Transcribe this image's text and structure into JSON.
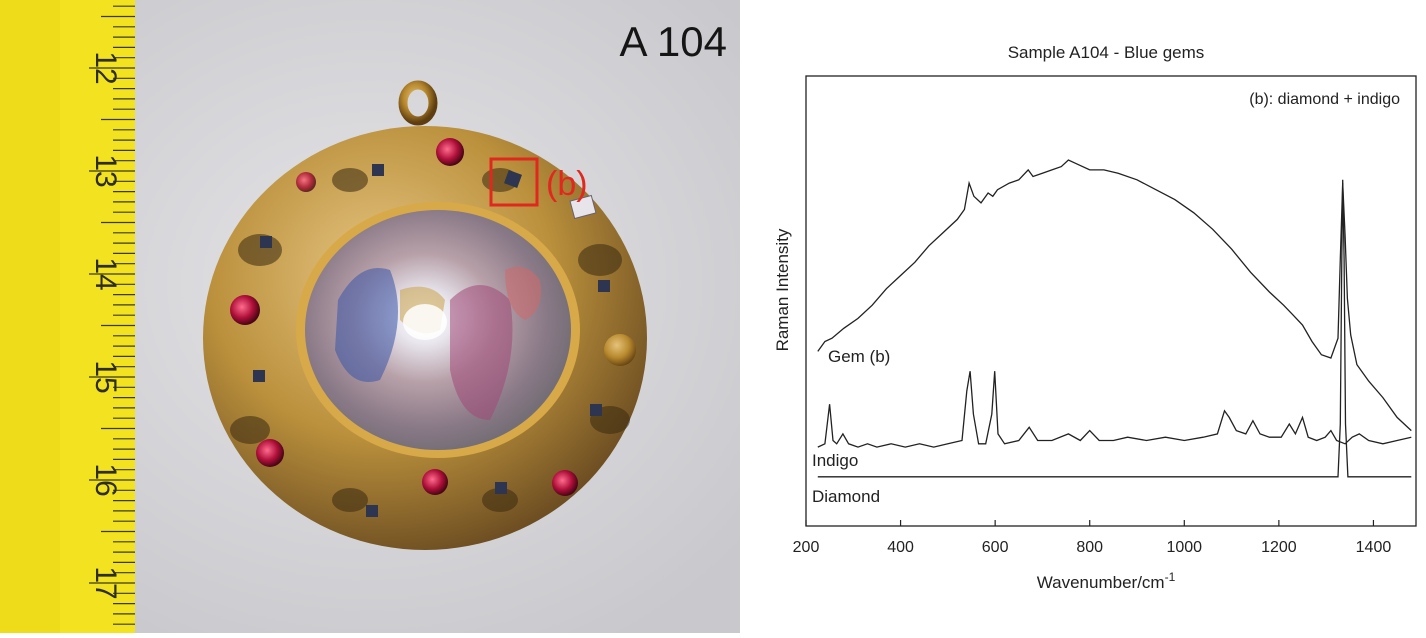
{
  "photo": {
    "sample_label": "A 104",
    "marker_label": "(b)",
    "ruler_numbers": [
      "12",
      "13",
      "14",
      "15",
      "16",
      "17"
    ],
    "colors": {
      "background": "#d9d9dc",
      "ruler": "#f3e21f",
      "marker": "#e0281f",
      "gold": "#b88a2e"
    }
  },
  "chart_data": {
    "type": "line",
    "title": "Sample A104 - Blue gems",
    "annotation": "(b): diamond + indigo",
    "xlabel": "Wavenumber/cm",
    "xlabel_superscript": "-1",
    "ylabel": "Raman Intensity",
    "xlim": [
      200,
      1490
    ],
    "ylim": [
      0,
      100
    ],
    "xticks": [
      200,
      400,
      600,
      800,
      1000,
      1200,
      1400
    ],
    "y_tick_labels_shown": false,
    "legend": "inline-labels",
    "series": [
      {
        "name": "Gem (b)",
        "color": "#222222",
        "points": [
          [
            225,
            42
          ],
          [
            240,
            45
          ],
          [
            255,
            46
          ],
          [
            280,
            49
          ],
          [
            310,
            52
          ],
          [
            340,
            56
          ],
          [
            370,
            61
          ],
          [
            400,
            65
          ],
          [
            430,
            69
          ],
          [
            460,
            74
          ],
          [
            490,
            78
          ],
          [
            520,
            82
          ],
          [
            535,
            85
          ],
          [
            545,
            93
          ],
          [
            555,
            89
          ],
          [
            570,
            87
          ],
          [
            585,
            90
          ],
          [
            595,
            89
          ],
          [
            605,
            91
          ],
          [
            630,
            93
          ],
          [
            650,
            94
          ],
          [
            670,
            97
          ],
          [
            680,
            95
          ],
          [
            700,
            96
          ],
          [
            720,
            97
          ],
          [
            740,
            98
          ],
          [
            755,
            100
          ],
          [
            770,
            99
          ],
          [
            800,
            97
          ],
          [
            830,
            97
          ],
          [
            860,
            96
          ],
          [
            900,
            94
          ],
          [
            940,
            91
          ],
          [
            980,
            88
          ],
          [
            1020,
            84
          ],
          [
            1060,
            79
          ],
          [
            1100,
            73
          ],
          [
            1140,
            66
          ],
          [
            1180,
            60
          ],
          [
            1210,
            56
          ],
          [
            1230,
            53
          ],
          [
            1250,
            50
          ],
          [
            1270,
            45
          ],
          [
            1290,
            41
          ],
          [
            1310,
            40
          ],
          [
            1325,
            46
          ],
          [
            1330,
            70
          ],
          [
            1335,
            93
          ],
          [
            1340,
            77
          ],
          [
            1345,
            58
          ],
          [
            1352,
            47
          ],
          [
            1365,
            38
          ],
          [
            1390,
            33
          ],
          [
            1420,
            28
          ],
          [
            1450,
            22
          ],
          [
            1480,
            18
          ]
        ]
      },
      {
        "name": "Indigo",
        "color": "#222222",
        "points": [
          [
            225,
            13
          ],
          [
            240,
            14
          ],
          [
            250,
            26
          ],
          [
            257,
            15
          ],
          [
            265,
            14
          ],
          [
            278,
            17
          ],
          [
            290,
            14
          ],
          [
            310,
            13
          ],
          [
            330,
            14
          ],
          [
            350,
            13
          ],
          [
            380,
            14
          ],
          [
            410,
            13
          ],
          [
            440,
            14
          ],
          [
            470,
            13
          ],
          [
            500,
            14
          ],
          [
            530,
            15
          ],
          [
            540,
            30
          ],
          [
            547,
            36
          ],
          [
            554,
            23
          ],
          [
            565,
            14
          ],
          [
            580,
            14
          ],
          [
            593,
            23
          ],
          [
            599,
            36
          ],
          [
            606,
            17
          ],
          [
            620,
            14
          ],
          [
            650,
            15
          ],
          [
            672,
            19
          ],
          [
            690,
            15
          ],
          [
            720,
            15
          ],
          [
            755,
            17
          ],
          [
            780,
            15
          ],
          [
            800,
            18
          ],
          [
            820,
            15
          ],
          [
            850,
            15
          ],
          [
            880,
            16
          ],
          [
            920,
            15
          ],
          [
            960,
            16
          ],
          [
            1000,
            15
          ],
          [
            1040,
            16
          ],
          [
            1070,
            17
          ],
          [
            1085,
            24
          ],
          [
            1095,
            22
          ],
          [
            1110,
            18
          ],
          [
            1130,
            17
          ],
          [
            1145,
            21
          ],
          [
            1160,
            17
          ],
          [
            1180,
            16
          ],
          [
            1205,
            16
          ],
          [
            1222,
            20
          ],
          [
            1235,
            17
          ],
          [
            1250,
            22
          ],
          [
            1262,
            16
          ],
          [
            1280,
            15
          ],
          [
            1298,
            16
          ],
          [
            1310,
            18
          ],
          [
            1322,
            15
          ],
          [
            1340,
            14
          ],
          [
            1355,
            16
          ],
          [
            1370,
            17
          ],
          [
            1390,
            15
          ],
          [
            1420,
            14
          ],
          [
            1450,
            15
          ],
          [
            1480,
            16
          ]
        ]
      },
      {
        "name": "Diamond",
        "color": "#222222",
        "points": [
          [
            225,
            4
          ],
          [
            300,
            4
          ],
          [
            400,
            4
          ],
          [
            500,
            4
          ],
          [
            600,
            4
          ],
          [
            700,
            4
          ],
          [
            800,
            4
          ],
          [
            900,
            4
          ],
          [
            1000,
            4
          ],
          [
            1100,
            4
          ],
          [
            1200,
            4
          ],
          [
            1300,
            4
          ],
          [
            1325,
            4
          ],
          [
            1330,
            20
          ],
          [
            1333,
            70
          ],
          [
            1335,
            94
          ],
          [
            1338,
            70
          ],
          [
            1341,
            20
          ],
          [
            1346,
            4
          ],
          [
            1400,
            4
          ],
          [
            1480,
            4
          ]
        ]
      }
    ]
  }
}
